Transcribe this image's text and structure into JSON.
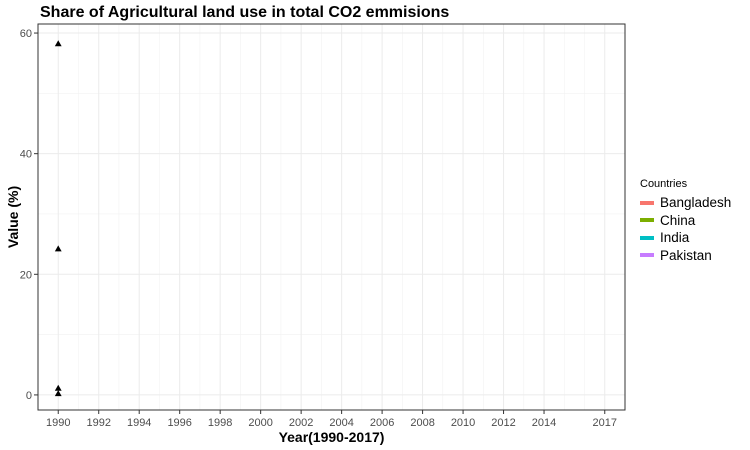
{
  "chart_data": {
    "type": "scatter",
    "title": "Share of Agricultural land use in total CO2 emmisions",
    "xlabel": "Year(1990-2017)",
    "ylabel": "Value (%)",
    "x_ticks": [
      1990,
      1992,
      1994,
      1996,
      1998,
      2000,
      2002,
      2004,
      2006,
      2008,
      2010,
      2012,
      2014,
      2017
    ],
    "y_ticks": [
      0,
      20,
      40,
      60
    ],
    "xlim": [
      1989,
      2018
    ],
    "ylim": [
      -2.5,
      61.5
    ],
    "grid": true,
    "legend_position": "right",
    "legend_title": "Countries",
    "series": [
      {
        "name": "Bangladesh",
        "color": "#F8766D",
        "x": [
          1990
        ],
        "y": [
          58.2
        ]
      },
      {
        "name": "China",
        "color": "#7CAE00",
        "x": [
          1990
        ],
        "y": [
          0.2
        ]
      },
      {
        "name": "India",
        "color": "#00BFC4",
        "x": [
          1990
        ],
        "y": [
          1.1
        ]
      },
      {
        "name": "Pakistan",
        "color": "#C77CFF",
        "x": [
          1990
        ],
        "y": [
          24.2
        ]
      }
    ]
  }
}
